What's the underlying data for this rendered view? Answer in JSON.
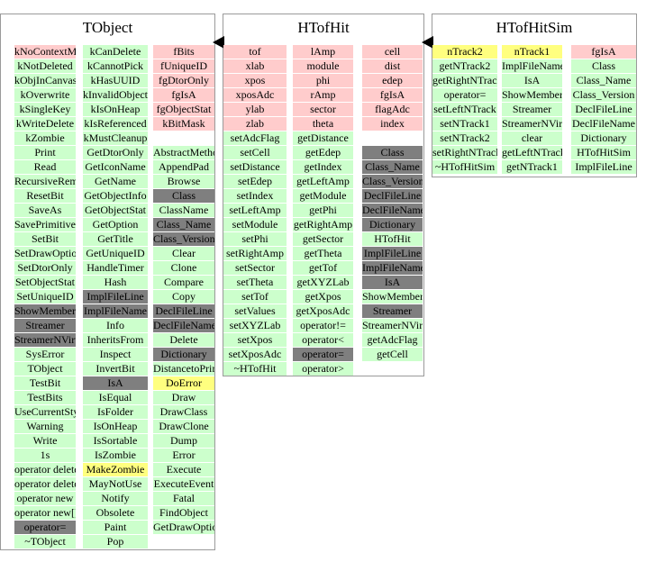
{
  "classes": [
    {
      "name": "TObject",
      "columns": [
        [
          [
            "kNoContextMenu",
            "pink"
          ],
          [
            "kNotDeleted",
            "green"
          ],
          [
            "kObjInCanvas",
            "green"
          ],
          [
            "kOverwrite",
            "green"
          ],
          [
            "kSingleKey",
            "green"
          ],
          [
            "kWriteDelete",
            "green"
          ],
          [
            "kZombie",
            "green"
          ],
          [
            "Print",
            "green"
          ],
          [
            "Read",
            "green"
          ],
          [
            "RecursiveRemove",
            "green"
          ],
          [
            "ResetBit",
            "green"
          ],
          [
            "SaveAs",
            "green"
          ],
          [
            "SavePrimitive",
            "green"
          ],
          [
            "SetBit",
            "green"
          ],
          [
            "SetDrawOption",
            "green"
          ],
          [
            "SetDtorOnly",
            "green"
          ],
          [
            "SetObjectStat",
            "green"
          ],
          [
            "SetUniqueID",
            "green"
          ],
          [
            "ShowMembers",
            "gray"
          ],
          [
            "Streamer",
            "gray"
          ],
          [
            "StreamerNVirtual",
            "gray"
          ],
          [
            "SysError",
            "green"
          ],
          [
            "TObject",
            "green"
          ],
          [
            "TestBit",
            "green"
          ],
          [
            "TestBits",
            "green"
          ],
          [
            "UseCurrentStyle",
            "green"
          ],
          [
            "Warning",
            "green"
          ],
          [
            "Write",
            "green"
          ],
          [
            "1s",
            "green"
          ],
          [
            "operator delete",
            "green"
          ],
          [
            "operator delete[]",
            "green"
          ],
          [
            "operator new",
            "green"
          ],
          [
            "operator new[]",
            "green"
          ],
          [
            "operator=",
            "gray"
          ],
          [
            "~TObject",
            "green"
          ]
        ],
        [
          [
            "kCanDelete",
            "green"
          ],
          [
            "kCannotPick",
            "green"
          ],
          [
            "kHasUUID",
            "green"
          ],
          [
            "kInvalidObject",
            "green"
          ],
          [
            "kIsOnHeap",
            "green"
          ],
          [
            "kIsReferenced",
            "green"
          ],
          [
            "kMustCleanup",
            "green"
          ],
          [
            "GetDtorOnly",
            "green"
          ],
          [
            "GetIconName",
            "green"
          ],
          [
            "GetName",
            "green"
          ],
          [
            "GetObjectInfo",
            "green"
          ],
          [
            "GetObjectStat",
            "green"
          ],
          [
            "GetOption",
            "green"
          ],
          [
            "GetTitle",
            "green"
          ],
          [
            "GetUniqueID",
            "green"
          ],
          [
            "HandleTimer",
            "green"
          ],
          [
            "Hash",
            "green"
          ],
          [
            "ImplFileLine",
            "gray"
          ],
          [
            "ImplFileName",
            "gray"
          ],
          [
            "Info",
            "green"
          ],
          [
            "InheritsFrom",
            "green"
          ],
          [
            "Inspect",
            "green"
          ],
          [
            "InvertBit",
            "green"
          ],
          [
            "IsA",
            "gray"
          ],
          [
            "IsEqual",
            "green"
          ],
          [
            "IsFolder",
            "green"
          ],
          [
            "IsOnHeap",
            "green"
          ],
          [
            "IsSortable",
            "green"
          ],
          [
            "IsZombie",
            "green"
          ],
          [
            "MakeZombie",
            "yellow"
          ],
          [
            "MayNotUse",
            "green"
          ],
          [
            "Notify",
            "green"
          ],
          [
            "Obsolete",
            "green"
          ],
          [
            "Paint",
            "green"
          ],
          [
            "Pop",
            "green"
          ]
        ],
        [
          [
            "fBits",
            "pink"
          ],
          [
            "fUniqueID",
            "pink"
          ],
          [
            "fgDtorOnly",
            "pink"
          ],
          [
            "fgIsA",
            "pink"
          ],
          [
            "fgObjectStat",
            "pink"
          ],
          [
            "kBitMask",
            "pink"
          ],
          [
            "",
            "blank"
          ],
          [
            "AbstractMethod",
            "green"
          ],
          [
            "AppendPad",
            "green"
          ],
          [
            "Browse",
            "green"
          ],
          [
            "Class",
            "gray"
          ],
          [
            "ClassName",
            "green"
          ],
          [
            "Class_Name",
            "gray"
          ],
          [
            "Class_Version",
            "gray"
          ],
          [
            "Clear",
            "green"
          ],
          [
            "Clone",
            "green"
          ],
          [
            "Compare",
            "green"
          ],
          [
            "Copy",
            "green"
          ],
          [
            "DeclFileLine",
            "gray"
          ],
          [
            "DeclFileName",
            "gray"
          ],
          [
            "Delete",
            "green"
          ],
          [
            "Dictionary",
            "gray"
          ],
          [
            "DistancetoPrimitive",
            "green"
          ],
          [
            "DoError",
            "yellow"
          ],
          [
            "Draw",
            "green"
          ],
          [
            "DrawClass",
            "green"
          ],
          [
            "DrawClone",
            "green"
          ],
          [
            "Dump",
            "green"
          ],
          [
            "Error",
            "green"
          ],
          [
            "Execute",
            "green"
          ],
          [
            "ExecuteEvent",
            "green"
          ],
          [
            "Fatal",
            "green"
          ],
          [
            "FindObject",
            "green"
          ],
          [
            "GetDrawOption",
            "green"
          ]
        ]
      ]
    },
    {
      "name": "HTofHit",
      "columns": [
        [
          [
            "tof",
            "pink"
          ],
          [
            "xlab",
            "pink"
          ],
          [
            "xpos",
            "pink"
          ],
          [
            "xposAdc",
            "pink"
          ],
          [
            "ylab",
            "pink"
          ],
          [
            "zlab",
            "pink"
          ],
          [
            "setAdcFlag",
            "green"
          ],
          [
            "setCell",
            "green"
          ],
          [
            "setDistance",
            "green"
          ],
          [
            "setEdep",
            "green"
          ],
          [
            "setIndex",
            "green"
          ],
          [
            "setLeftAmp",
            "green"
          ],
          [
            "setModule",
            "green"
          ],
          [
            "setPhi",
            "green"
          ],
          [
            "setRightAmp",
            "green"
          ],
          [
            "setSector",
            "green"
          ],
          [
            "setTheta",
            "green"
          ],
          [
            "setTof",
            "green"
          ],
          [
            "setValues",
            "green"
          ],
          [
            "setXYZLab",
            "green"
          ],
          [
            "setXpos",
            "green"
          ],
          [
            "setXposAdc",
            "green"
          ],
          [
            "~HTofHit",
            "green"
          ]
        ],
        [
          [
            "lAmp",
            "pink"
          ],
          [
            "module",
            "pink"
          ],
          [
            "phi",
            "pink"
          ],
          [
            "rAmp",
            "pink"
          ],
          [
            "sector",
            "pink"
          ],
          [
            "theta",
            "pink"
          ],
          [
            "getDistance",
            "green"
          ],
          [
            "getEdep",
            "green"
          ],
          [
            "getIndex",
            "green"
          ],
          [
            "getLeftAmp",
            "green"
          ],
          [
            "getModule",
            "green"
          ],
          [
            "getPhi",
            "green"
          ],
          [
            "getRightAmp",
            "green"
          ],
          [
            "getSector",
            "green"
          ],
          [
            "getTheta",
            "green"
          ],
          [
            "getTof",
            "green"
          ],
          [
            "getXYZLab",
            "green"
          ],
          [
            "getXpos",
            "green"
          ],
          [
            "getXposAdc",
            "green"
          ],
          [
            "operator!=",
            "green"
          ],
          [
            "operator<",
            "green"
          ],
          [
            "operator=",
            "gray"
          ],
          [
            "operator>",
            "green"
          ]
        ],
        [
          [
            "cell",
            "pink"
          ],
          [
            "dist",
            "pink"
          ],
          [
            "edep",
            "pink"
          ],
          [
            "fgIsA",
            "pink"
          ],
          [
            "flagAdc",
            "pink"
          ],
          [
            "index",
            "pink"
          ],
          [
            "",
            "blank"
          ],
          [
            "Class",
            "gray"
          ],
          [
            "Class_Name",
            "gray"
          ],
          [
            "Class_Version",
            "gray"
          ],
          [
            "DeclFileLine",
            "gray"
          ],
          [
            "DeclFileName",
            "gray"
          ],
          [
            "Dictionary",
            "gray"
          ],
          [
            "HTofHit",
            "green"
          ],
          [
            "ImplFileLine",
            "gray"
          ],
          [
            "ImplFileName",
            "gray"
          ],
          [
            "IsA",
            "gray"
          ],
          [
            "ShowMembers",
            "green"
          ],
          [
            "Streamer",
            "gray"
          ],
          [
            "StreamerNVirtual",
            "green"
          ],
          [
            "getAdcFlag",
            "green"
          ],
          [
            "getCell",
            "green"
          ]
        ]
      ]
    },
    {
      "name": "HTofHitSim",
      "columns": [
        [
          [
            "nTrack2",
            "yellow"
          ],
          [
            "getNTrack2",
            "green"
          ],
          [
            "getRightNTrack",
            "green"
          ],
          [
            "operator=",
            "green"
          ],
          [
            "setLeftNTrack",
            "green"
          ],
          [
            "setNTrack1",
            "green"
          ],
          [
            "setNTrack2",
            "green"
          ],
          [
            "setRightNTrack",
            "green"
          ],
          [
            "~HTofHitSim",
            "green"
          ]
        ],
        [
          [
            "nTrack1",
            "yellow"
          ],
          [
            "ImplFileName",
            "green"
          ],
          [
            "IsA",
            "green"
          ],
          [
            "ShowMembers",
            "green"
          ],
          [
            "Streamer",
            "green"
          ],
          [
            "StreamerNVirtual",
            "green"
          ],
          [
            "clear",
            "green"
          ],
          [
            "getLeftNTrack",
            "green"
          ],
          [
            "getNTrack1",
            "green"
          ]
        ],
        [
          [
            "fgIsA",
            "pink"
          ],
          [
            "Class",
            "green"
          ],
          [
            "Class_Name",
            "green"
          ],
          [
            "Class_Version",
            "green"
          ],
          [
            "DeclFileLine",
            "green"
          ],
          [
            "DeclFileName",
            "green"
          ],
          [
            "Dictionary",
            "green"
          ],
          [
            "HTofHitSim",
            "green"
          ],
          [
            "ImplFileLine",
            "green"
          ]
        ]
      ]
    }
  ]
}
